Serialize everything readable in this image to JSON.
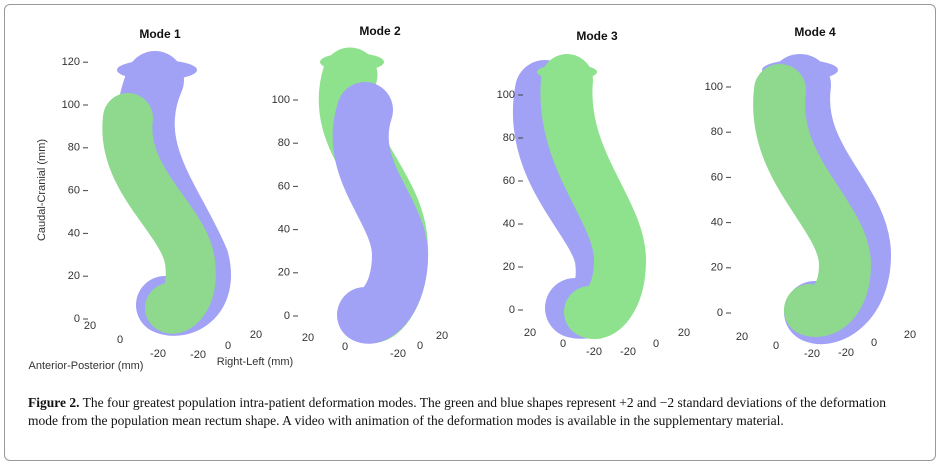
{
  "panels": [
    {
      "title": "Mode 1",
      "zticks": [
        0,
        20,
        40,
        60,
        80,
        100,
        120
      ],
      "ap_ticks": [
        20,
        0,
        -20
      ],
      "rl_ticks": [
        -20,
        0,
        20
      ],
      "z_label": "Caudal-Cranial (mm)",
      "ap_label": "Anterior-Posterior (mm)",
      "rl_label": "Right-Left (mm)"
    },
    {
      "title": "Mode 2",
      "zticks": [
        0,
        20,
        40,
        60,
        80,
        100
      ],
      "ap_ticks": [
        20,
        0
      ],
      "rl_ticks": [
        -20,
        0,
        20
      ]
    },
    {
      "title": "Mode 3",
      "zticks": [
        0,
        20,
        40,
        60,
        80,
        100
      ],
      "ap_ticks": [
        20,
        0,
        -20
      ],
      "rl_ticks": [
        -20,
        0,
        20
      ]
    },
    {
      "title": "Mode 4",
      "zticks": [
        0,
        20,
        40,
        60,
        80,
        100
      ],
      "ap_ticks": [
        20,
        0,
        -20
      ],
      "rl_ticks": [
        -20,
        0,
        20
      ]
    }
  ],
  "caption": {
    "label": "Figure 2.",
    "text": "The four greatest population intra-patient deformation modes. The green and blue shapes represent +2 and −2 standard deviations of the deformation mode from the population mean rectum shape. A video with animation of the deformation modes is available in the supplementary material."
  }
}
